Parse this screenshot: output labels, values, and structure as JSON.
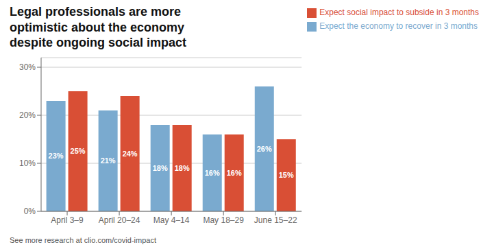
{
  "chart_data": {
    "type": "bar",
    "title": "Legal professionals are more\noptimistic about the economy\ndespite ongoing social impact",
    "categories": [
      "April 3–9",
      "April 20–24",
      "May 4–14",
      "May 18–29",
      "June 15–22"
    ],
    "series": [
      {
        "name": "Expect the economy to recover in 3 months",
        "color": "#7aaacf",
        "values": [
          23,
          21,
          18,
          16,
          26
        ],
        "value_labels": [
          "23%",
          "21%",
          "18%",
          "16%",
          "26%"
        ]
      },
      {
        "name": "Expect social impact to subside in 3 months",
        "color": "#d94f35",
        "values": [
          25,
          24,
          18,
          16,
          15
        ],
        "value_labels": [
          "25%",
          "24%",
          "18%",
          "16%",
          "15%"
        ]
      }
    ],
    "ylim": [
      0,
      32
    ],
    "yticks": [
      {
        "value": 0,
        "label": "0%"
      },
      {
        "value": 10,
        "label": "10%"
      },
      {
        "value": 20,
        "label": "20%"
      },
      {
        "value": 30,
        "label": "30%"
      }
    ],
    "grid": true,
    "legend": "upper right",
    "data_labels": true,
    "annotations": [
      "See more research at clio.com/covid-impact"
    ]
  }
}
